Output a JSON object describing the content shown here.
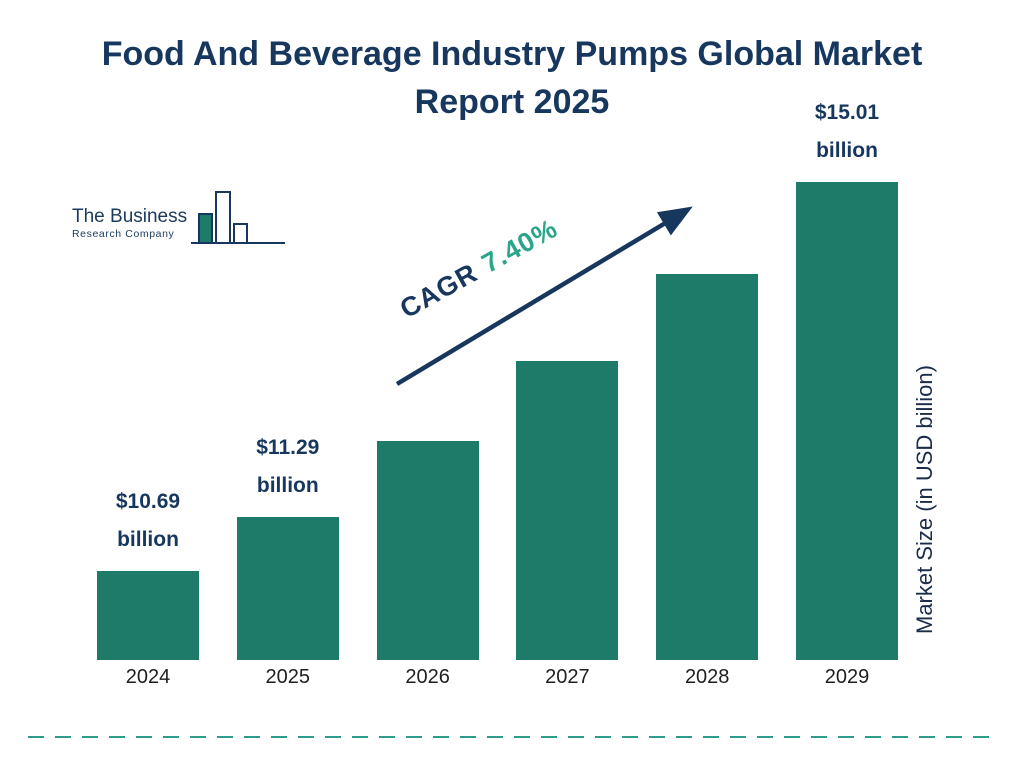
{
  "title": "Food And Beverage Industry Pumps Global Market Report 2025",
  "logo": {
    "line1": "The Business",
    "line2": "Research Company"
  },
  "cagr": {
    "label": "CAGR",
    "value": "7.40%"
  },
  "y_axis_label": "Market Size (in USD billion)",
  "chart_data": {
    "type": "bar",
    "title": "Food And Beverage Industry Pumps Global Market Report 2025",
    "categories": [
      "2024",
      "2025",
      "2026",
      "2027",
      "2028",
      "2029"
    ],
    "values": [
      10.69,
      11.29,
      12.13,
      13.02,
      13.99,
      15.01
    ],
    "value_labels": [
      {
        "amount": "$10.69",
        "unit": "billion"
      },
      {
        "amount": "$11.29",
        "unit": "billion"
      },
      null,
      null,
      null,
      {
        "amount": "$15.01",
        "unit": "billion"
      }
    ],
    "xlabel": "",
    "ylabel": "Market Size (in USD billion)",
    "ylim": [
      9.7,
      15.01
    ],
    "grid": false,
    "legend": false,
    "annotation": "CAGR 7.40%",
    "bar_color": "#1E7B6A"
  },
  "colors": {
    "bar": "#1E7B6A",
    "navy": "#17375E",
    "cagr_green": "#2AA589",
    "divider_teal": "#2E9C8B"
  }
}
